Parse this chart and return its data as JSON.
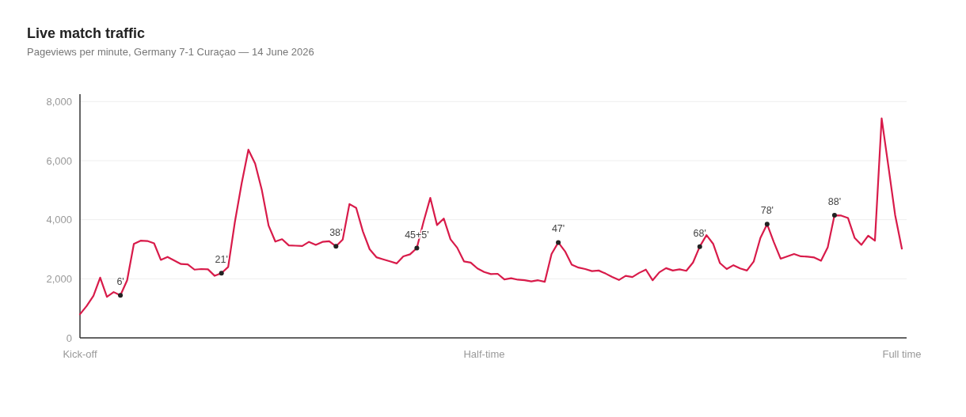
{
  "chart_data": {
    "type": "line",
    "title": "Live match traffic",
    "subtitle": "Pageviews per minute, Germany 7-1 Curaçao — 14 June 2026",
    "categories": [
      "Kick-off",
      null,
      null,
      null,
      null,
      null,
      null,
      null,
      null,
      null,
      null,
      null,
      null,
      null,
      null,
      null,
      null,
      null,
      null,
      null,
      null,
      null,
      null,
      null,
      null,
      null,
      null,
      null,
      null,
      null,
      null,
      null,
      null,
      null,
      null,
      null,
      null,
      null,
      null,
      null,
      null,
      null,
      null,
      null,
      null,
      null,
      null,
      null,
      null,
      null,
      null,
      null,
      null,
      null,
      null,
      null,
      null,
      null,
      null,
      null,
      "Half-time",
      null,
      null,
      null,
      null,
      null,
      null,
      null,
      null,
      null,
      null,
      null,
      null,
      null,
      null,
      null,
      null,
      null,
      null,
      null,
      null,
      null,
      null,
      null,
      null,
      null,
      null,
      null,
      null,
      null,
      null,
      null,
      null,
      null,
      null,
      null,
      null,
      null,
      null,
      null,
      null,
      null,
      null,
      null,
      null,
      null,
      null,
      null,
      null,
      null,
      null,
      null,
      null,
      null,
      null,
      null,
      null,
      null,
      null,
      null,
      null,
      null,
      "Full time"
    ],
    "series": [
      {
        "color": "#d81b4a",
        "values": [
          800,
          1080,
          1420,
          2040,
          1390,
          1550,
          1440,
          1950,
          3180,
          3290,
          3280,
          3200,
          2640,
          2740,
          2620,
          2500,
          2490,
          2310,
          2330,
          2320,
          2100,
          2190,
          2400,
          3930,
          5230,
          6370,
          5900,
          5000,
          3800,
          3260,
          3340,
          3130,
          3120,
          3110,
          3250,
          3150,
          3250,
          3270,
          3100,
          3330,
          4530,
          4400,
          3600,
          3000,
          2730,
          2660,
          2590,
          2520,
          2760,
          2830,
          3040,
          3930,
          4740,
          3820,
          4040,
          3340,
          3050,
          2590,
          2550,
          2350,
          2230,
          2160,
          2170,
          1980,
          2020,
          1970,
          1950,
          1910,
          1950,
          1900,
          2840,
          3230,
          2930,
          2480,
          2380,
          2330,
          2260,
          2280,
          2180,
          2060,
          1960,
          2100,
          2060,
          2200,
          2310,
          1950,
          2220,
          2360,
          2280,
          2320,
          2270,
          2550,
          3090,
          3480,
          3180,
          2530,
          2330,
          2460,
          2350,
          2280,
          2580,
          3380,
          3850,
          3240,
          2680,
          2760,
          2840,
          2760,
          2750,
          2720,
          2610,
          3070,
          4150,
          4140,
          4060,
          3380,
          3150,
          3460,
          3290,
          7430,
          5810,
          4160,
          3020
        ]
      }
    ],
    "ylim": [
      0,
      8250
    ],
    "yticks": [
      0,
      {
        "value": 2000,
        "label": "2,000"
      },
      {
        "value": 4000,
        "label": "4,000"
      },
      {
        "value": 6000,
        "label": "6,000"
      },
      {
        "value": 8000,
        "label": "8,000"
      }
    ],
    "grid": "y",
    "marker": "none",
    "line_style": "solid",
    "annotations": [
      {
        "text": "6'",
        "y": 1440
      },
      {
        "text": "21'",
        "y": 2190
      },
      {
        "text": "38'",
        "y": 3100
      },
      {
        "text": "45+5'",
        "y": 3040
      },
      {
        "text": "47'",
        "y": 3230
      },
      {
        "text": "68'",
        "y": 3090
      },
      {
        "text": "78'",
        "y": 3850
      },
      {
        "text": "88'",
        "y": 4150
      }
    ]
  }
}
